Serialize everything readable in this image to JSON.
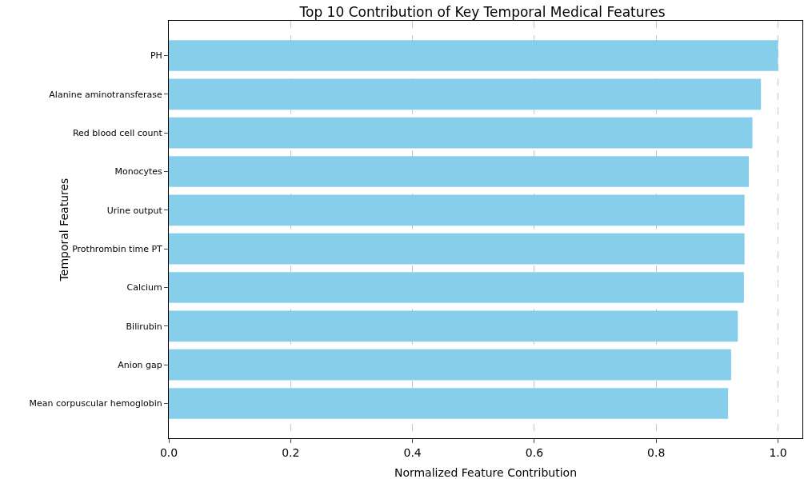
{
  "chart_data": {
    "type": "bar",
    "orientation": "horizontal",
    "title": "Top 10 Contribution of Key Temporal Medical Features",
    "xlabel": "Normalized Feature Contribution",
    "ylabel": "Temporal Features",
    "categories": [
      "PH",
      "Alanine aminotransferase",
      "Red blood cell count",
      "Monocytes",
      "Urine output",
      "Prothrombin time PT",
      "Calcium",
      "Bilirubin",
      "Anion gap",
      "Mean corpuscular hemoglobin"
    ],
    "values": [
      1.0,
      0.972,
      0.958,
      0.952,
      0.945,
      0.945,
      0.944,
      0.934,
      0.923,
      0.918
    ],
    "color": "#87ceeb",
    "xlim": [
      0,
      1.04
    ],
    "xticks": [
      {
        "value": 0,
        "label": "0.0"
      },
      {
        "value": 0.2,
        "label": "0.2"
      },
      {
        "value": 0.4,
        "label": "0.4"
      },
      {
        "value": 0.6,
        "label": "0.6"
      },
      {
        "value": 0.8,
        "label": "0.8"
      },
      {
        "value": 1,
        "label": "1.0"
      }
    ],
    "grid": "x",
    "line_style": "dashed"
  }
}
